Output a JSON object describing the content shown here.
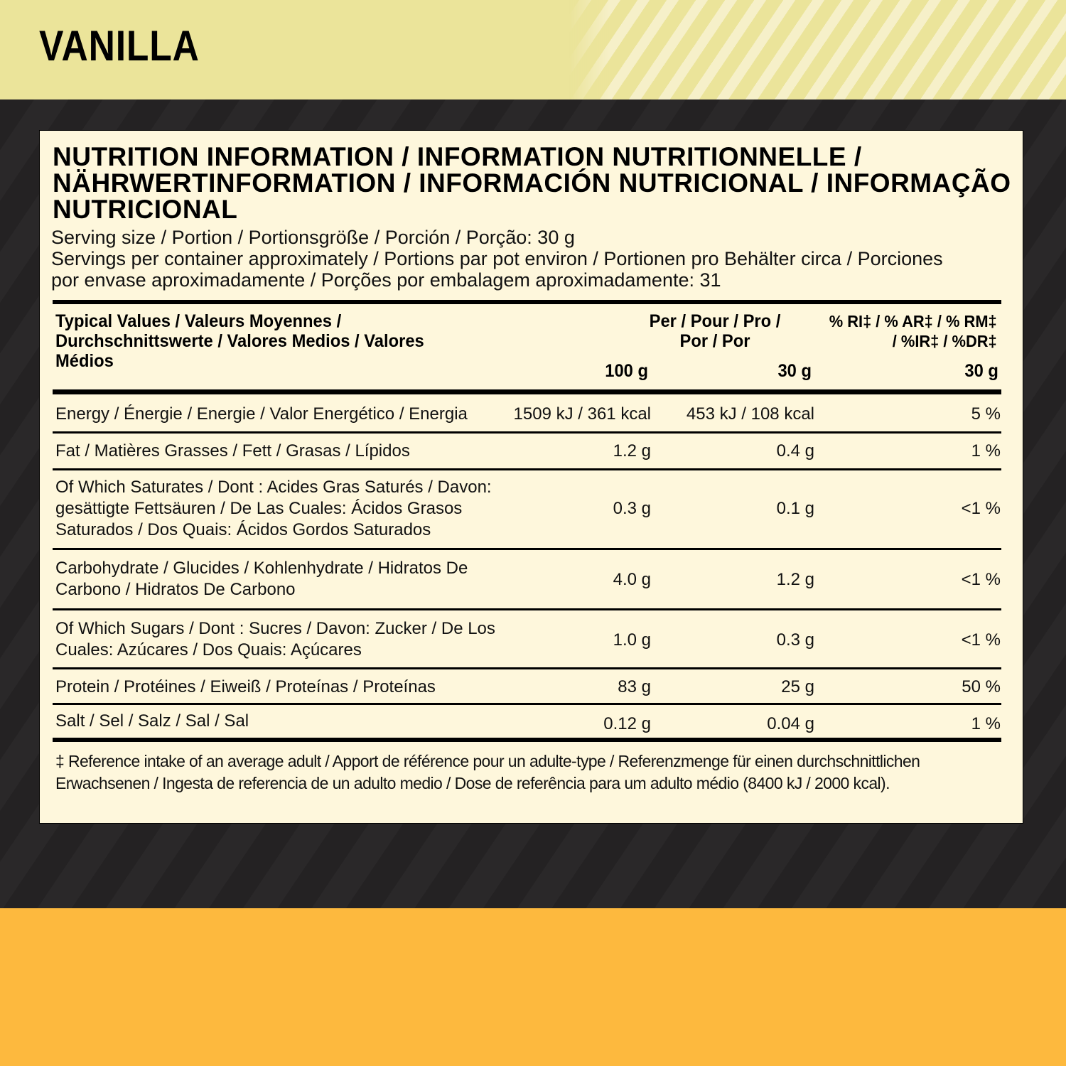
{
  "flavor": "VANILLA",
  "title": "NUTRITION INFORMATION / INFORMATION NUTRITIONNELLE / NÄHRWERTINFORMATION / INFORMACIÓN NUTRICIONAL / INFORMAÇÃO NUTRICIONAL",
  "serving_size": "Serving size / Portion / Portionsgröße / Porción / Porção: 30 g",
  "servings_per_container": "Servings per container approximately / Portions par pot environ / Portionen pro Behälter circa / Porciones por envase aproximadamente / Porções por embalagem aproximadamente: 31",
  "table": {
    "headers": {
      "label": "Typical Values / Valeurs Moyennes / Durchschnittswerte / Valores Medios / Valores Médios",
      "per": "Per / Pour / Pro / Por / Por",
      "ri": "% RI‡ / % AR‡ / % RM‡ / %IR‡ / %DR‡",
      "col1": "100 g",
      "col2": "30 g",
      "col3": "30 g"
    },
    "rows": [
      {
        "label": "Energy / Énergie / Energie / Valor Energético / Energia",
        "per100": "1509 kJ / 361 kcal",
        "per30": "453 kJ / 108 kcal",
        "ri": "5 %"
      },
      {
        "label": "Fat / Matières Grasses / Fett / Grasas / Lípidos",
        "per100": "1.2 g",
        "per30": "0.4 g",
        "ri": "1 %"
      },
      {
        "label": "Of Which Saturates / Dont : Acides Gras Saturés / Davon: gesättigte Fettsäuren / De Las Cuales: Ácidos Grasos Saturados / Dos Quais: Ácidos Gordos Saturados",
        "per100": "0.3 g",
        "per30": "0.1 g",
        "ri": "<1 %"
      },
      {
        "label": "Carbohydrate / Glucides / Kohlenhydrate / Hidratos De Carbono / Hidratos De Carbono",
        "per100": "4.0 g",
        "per30": "1.2 g",
        "ri": "<1 %"
      },
      {
        "label": "Of Which Sugars / Dont : Sucres / Davon: Zucker / De Los Cuales: Azúcares / Dos Quais: Açúcares",
        "per100": "1.0 g",
        "per30": "0.3 g",
        "ri": "<1 %"
      },
      {
        "label": "Protein / Protéines / Eiweiß / Proteínas / Proteínas",
        "per100": "83 g",
        "per30": "25 g",
        "ri": "50 %"
      },
      {
        "label": "Salt / Sel / Salz / Sal / Sal",
        "per100": "0.12 g",
        "per30": "0.04 g",
        "ri": "1 %"
      }
    ]
  },
  "footnote": "‡ Reference intake of an average adult / Apport de référence pour un adulte-type / Referenzmenge für einen durchschnittlichen Erwachsenen /  Ingesta de referencia de un adulto medio / Dose de referência para um adulto médio (8400 kJ / 2000 kcal).",
  "colors": {
    "top_band": "#ebe49a",
    "background": "#242223",
    "bottom_band": "#fdb93e",
    "card": "#fef7dc"
  }
}
